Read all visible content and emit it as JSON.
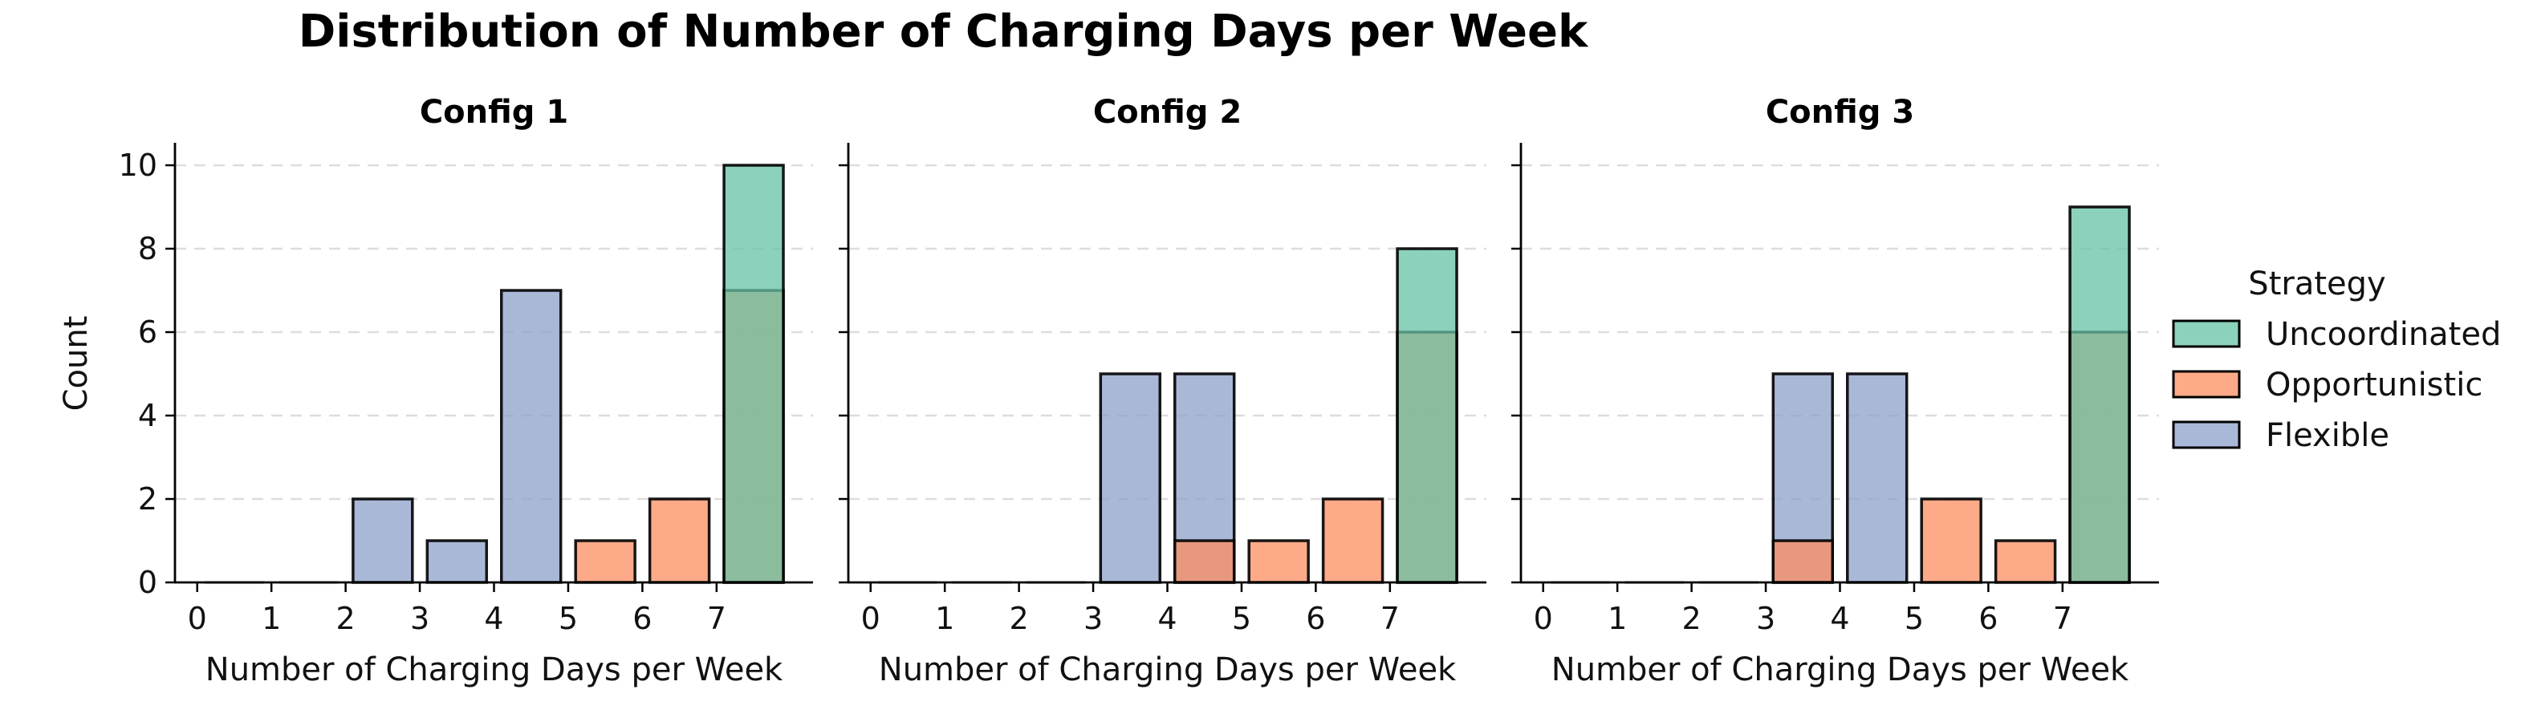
{
  "title": "Distribution of Number of Charging Days per Week",
  "legend": {
    "title": "Strategy",
    "placement": "right",
    "entries": [
      {
        "name": "Uncoordinated",
        "color": "#66c2a5"
      },
      {
        "name": "Opportunistic",
        "color": "#fc8d62"
      },
      {
        "name": "Flexible",
        "color": "#8da0cb"
      }
    ]
  },
  "chart_data": [
    {
      "type": "bar",
      "title": "Config 1",
      "xlabel": "Number of Charging Days per Week",
      "ylabel": "Count",
      "x_ticks": [
        "0",
        "1",
        "2",
        "3",
        "4",
        "5",
        "6",
        "7"
      ],
      "y_ticks": [
        "0",
        "2",
        "4",
        "6",
        "8",
        "10"
      ],
      "ylim": [
        0,
        10.5
      ],
      "grid": "y",
      "series": [
        {
          "name": "Flexible",
          "color": "#8da0cb",
          "bins": [
            {
              "x": 2.5,
              "value": 2
            },
            {
              "x": 3.5,
              "value": 1
            },
            {
              "x": 4.5,
              "value": 7
            }
          ]
        },
        {
          "name": "Opportunistic",
          "color": "#fc8d62",
          "bins": [
            {
              "x": 5.5,
              "value": 1
            },
            {
              "x": 6.5,
              "value": 2
            },
            {
              "x": 7.5,
              "value": 7
            }
          ]
        },
        {
          "name": "Uncoordinated",
          "color": "#66c2a5",
          "bins": [
            {
              "x": 7.5,
              "value": 10
            }
          ]
        }
      ]
    },
    {
      "type": "bar",
      "title": "Config 2",
      "xlabel": "Number of Charging Days per Week",
      "ylabel": "",
      "x_ticks": [
        "0",
        "1",
        "2",
        "3",
        "4",
        "5",
        "6",
        "7"
      ],
      "y_ticks": [
        "0",
        "2",
        "4",
        "6",
        "8",
        "10"
      ],
      "ylim": [
        0,
        10.5
      ],
      "grid": "y",
      "series": [
        {
          "name": "Flexible",
          "color": "#8da0cb",
          "bins": [
            {
              "x": 3.5,
              "value": 5
            },
            {
              "x": 4.5,
              "value": 5
            }
          ]
        },
        {
          "name": "Opportunistic",
          "color": "#fc8d62",
          "bins": [
            {
              "x": 4.5,
              "value": 1
            },
            {
              "x": 5.5,
              "value": 1
            },
            {
              "x": 6.5,
              "value": 2
            },
            {
              "x": 7.5,
              "value": 6
            }
          ]
        },
        {
          "name": "Uncoordinated",
          "color": "#66c2a5",
          "bins": [
            {
              "x": 7.5,
              "value": 8
            }
          ]
        }
      ]
    },
    {
      "type": "bar",
      "title": "Config 3",
      "xlabel": "Number of Charging Days per Week",
      "ylabel": "",
      "x_ticks": [
        "0",
        "1",
        "2",
        "3",
        "4",
        "5",
        "6",
        "7"
      ],
      "y_ticks": [
        "0",
        "2",
        "4",
        "6",
        "8",
        "10"
      ],
      "ylim": [
        0,
        10.5
      ],
      "grid": "y",
      "series": [
        {
          "name": "Flexible",
          "color": "#8da0cb",
          "bins": [
            {
              "x": 3.5,
              "value": 5
            },
            {
              "x": 4.5,
              "value": 5
            }
          ]
        },
        {
          "name": "Opportunistic",
          "color": "#fc8d62",
          "bins": [
            {
              "x": 3.5,
              "value": 1
            },
            {
              "x": 5.5,
              "value": 2
            },
            {
              "x": 6.5,
              "value": 1
            },
            {
              "x": 7.5,
              "value": 6
            }
          ]
        },
        {
          "name": "Uncoordinated",
          "color": "#66c2a5",
          "bins": [
            {
              "x": 7.5,
              "value": 9
            }
          ]
        }
      ]
    }
  ]
}
